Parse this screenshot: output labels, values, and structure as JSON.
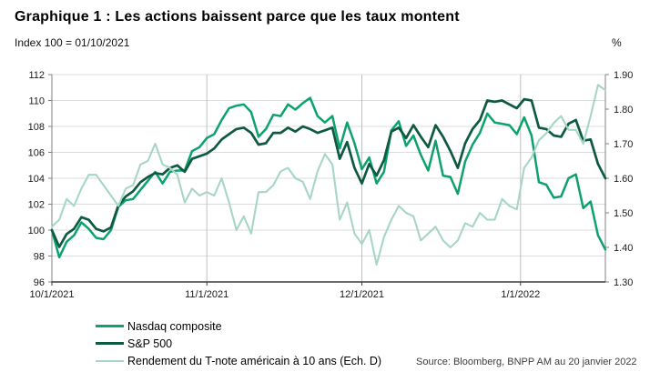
{
  "header": {
    "title": "Graphique 1 : Les actions baissent parce que les taux montent"
  },
  "source_note": "Source: Bloomberg, BNPP AM au 20 janvier 2022",
  "chart_data": {
    "type": "line",
    "title": "Graphique 1 : Les actions baissent parce que les taux montent",
    "grid": "horizontal + month verticals",
    "legend_position": "bottom-left",
    "left_axis": {
      "label": "Index 100 = 01/10/2021",
      "min": 96,
      "max": 112,
      "ticks": [
        96,
        98,
        100,
        102,
        104,
        106,
        108,
        110,
        112
      ]
    },
    "right_axis": {
      "label": "%",
      "min": 1.3,
      "max": 1.9,
      "ticks": [
        "1.30",
        "1.40",
        "1.50",
        "1.60",
        "1.70",
        "1.80",
        "1.90"
      ]
    },
    "x_ticks": [
      {
        "label": "10/1/2021",
        "index": 0
      },
      {
        "label": "11/1/2021",
        "index": 21
      },
      {
        "label": "12/1/2021",
        "index": 42
      },
      {
        "label": "1/1/2022",
        "index": 63.5
      }
    ],
    "dates": [
      "10/1",
      "10/4",
      "10/5",
      "10/6",
      "10/7",
      "10/8",
      "10/11",
      "10/12",
      "10/13",
      "10/14",
      "10/15",
      "10/18",
      "10/19",
      "10/20",
      "10/21",
      "10/22",
      "10/25",
      "10/26",
      "10/27",
      "10/28",
      "10/29",
      "11/1",
      "11/2",
      "11/3",
      "11/4",
      "11/5",
      "11/8",
      "11/9",
      "11/10",
      "11/11",
      "11/12",
      "11/15",
      "11/16",
      "11/17",
      "11/18",
      "11/19",
      "11/22",
      "11/23",
      "11/24",
      "11/26",
      "11/29",
      "11/30",
      "12/1",
      "12/2",
      "12/3",
      "12/6",
      "12/7",
      "12/8",
      "12/9",
      "12/10",
      "12/13",
      "12/14",
      "12/15",
      "12/16",
      "12/17",
      "12/20",
      "12/21",
      "12/22",
      "12/23",
      "12/27",
      "12/28",
      "12/29",
      "12/30",
      "12/31",
      "1/3",
      "1/4",
      "1/5",
      "1/6",
      "1/7",
      "1/10",
      "1/11",
      "1/12",
      "1/13",
      "1/14",
      "1/18",
      "1/19"
    ],
    "series": [
      {
        "id": "nasdaq",
        "name": "Nasdaq composite",
        "axis": "left",
        "color": "#0da26b",
        "width": 2.5,
        "values": [
          100,
          97.9,
          99.1,
          99.6,
          100.6,
          100.1,
          99.4,
          99.3,
          100.0,
          101.8,
          102.3,
          102.4,
          103.1,
          103.8,
          104.5,
          103.6,
          104.5,
          104.6,
          104.6,
          106.1,
          106.4,
          107.1,
          107.4,
          108.5,
          109.4,
          109.6,
          109.7,
          109.1,
          107.2,
          107.8,
          108.9,
          108.8,
          109.7,
          109.3,
          109.8,
          110.2,
          108.8,
          108.3,
          108.8,
          106.3,
          108.3,
          106.7,
          104.7,
          105.6,
          103.6,
          104.5,
          107.7,
          108.4,
          106.5,
          107.3,
          105.8,
          104.6,
          106.9,
          104.2,
          104.1,
          102.8,
          105.3,
          106.6,
          107.5,
          109.0,
          108.3,
          108.2,
          108.1,
          107.4,
          108.7,
          107.3,
          103.7,
          103.5,
          102.5,
          102.6,
          104.0,
          104.3,
          101.7,
          102.2,
          99.6,
          98.5
        ]
      },
      {
        "id": "sp500",
        "name": "S&P 500",
        "axis": "left",
        "color": "#0e5943",
        "width": 2.7,
        "values": [
          100,
          98.7,
          99.7,
          100.1,
          101.0,
          100.8,
          100.1,
          99.9,
          100.2,
          101.9,
          102.6,
          103.0,
          103.7,
          104.1,
          104.4,
          104.3,
          104.8,
          105.0,
          104.5,
          105.5,
          105.7,
          105.9,
          106.3,
          107.0,
          107.4,
          107.8,
          107.9,
          107.5,
          106.6,
          106.7,
          107.5,
          107.5,
          107.9,
          107.6,
          108.0,
          107.8,
          107.5,
          107.7,
          107.9,
          105.5,
          106.8,
          104.8,
          103.6,
          105.1,
          104.2,
          105.4,
          107.6,
          107.9,
          107.1,
          108.1,
          107.2,
          106.4,
          108.1,
          107.2,
          106.1,
          104.8,
          106.7,
          107.8,
          108.5,
          110.0,
          109.9,
          110.0,
          109.7,
          109.4,
          110.1,
          110.0,
          107.9,
          107.8,
          107.3,
          107.2,
          108.2,
          108.5,
          106.9,
          107.0,
          105.1,
          104.0
        ]
      },
      {
        "id": "tnote",
        "name": "Rendement du T-note américain à 10 ans (Ech. D)",
        "axis": "right",
        "color": "#a7d6c5",
        "width": 2.1,
        "values": [
          1.46,
          1.48,
          1.54,
          1.52,
          1.57,
          1.61,
          1.61,
          1.58,
          1.55,
          1.52,
          1.57,
          1.58,
          1.64,
          1.65,
          1.7,
          1.64,
          1.63,
          1.61,
          1.53,
          1.57,
          1.55,
          1.56,
          1.55,
          1.6,
          1.53,
          1.45,
          1.49,
          1.44,
          1.56,
          1.56,
          1.58,
          1.62,
          1.63,
          1.6,
          1.59,
          1.54,
          1.62,
          1.67,
          1.64,
          1.48,
          1.53,
          1.44,
          1.41,
          1.45,
          1.35,
          1.43,
          1.48,
          1.52,
          1.5,
          1.49,
          1.42,
          1.44,
          1.46,
          1.42,
          1.4,
          1.42,
          1.47,
          1.46,
          1.5,
          1.48,
          1.48,
          1.54,
          1.52,
          1.51,
          1.63,
          1.66,
          1.71,
          1.73,
          1.76,
          1.78,
          1.74,
          1.74,
          1.7,
          1.78,
          1.87,
          1.855
        ]
      }
    ]
  }
}
